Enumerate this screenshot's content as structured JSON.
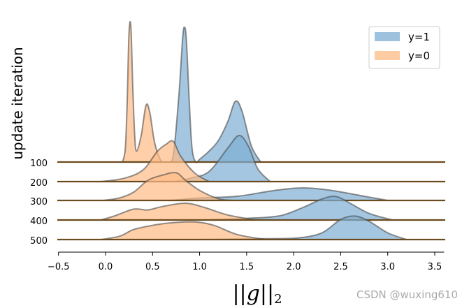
{
  "chart_data": {
    "type": "area",
    "title": "",
    "xlabel": "||g||2",
    "xlabel_parts": {
      "bars_left": "||",
      "var": "g",
      "bars_right": "||",
      "sub": "2"
    },
    "ylabel": "update iteration",
    "xlim": [
      -0.5,
      3.6
    ],
    "xticks": [
      -0.5,
      0.0,
      0.5,
      1.0,
      1.5,
      2.0,
      2.5,
      3.0,
      3.5
    ],
    "xtick_labels": [
      "−0.5",
      "0.0",
      "0.5",
      "1.0",
      "1.5",
      "2.0",
      "2.5",
      "3.0",
      "3.5"
    ],
    "categories": [
      "100",
      "200",
      "300",
      "400",
      "500"
    ],
    "legend": {
      "position": "top-right",
      "entries": [
        {
          "label": "y=1",
          "color": "#7eaed3"
        },
        {
          "label": "y=0",
          "color": "#fdbb84"
        }
      ]
    },
    "colors": {
      "y1": "#7eaed3",
      "y0": "#fdbb84",
      "baseline": "#6b4a1e"
    },
    "series": [
      {
        "iteration": "100",
        "y1": [
          [
            0.66,
            0
          ],
          [
            0.72,
            0.05
          ],
          [
            0.78,
            0.5
          ],
          [
            0.82,
            0.92
          ],
          [
            0.84,
            1.0
          ],
          [
            0.86,
            0.9
          ],
          [
            0.89,
            0.45
          ],
          [
            0.92,
            0.1
          ],
          [
            0.96,
            0
          ],
          [
            1.0,
            0.02
          ],
          [
            1.1,
            0.08
          ],
          [
            1.2,
            0.16
          ],
          [
            1.3,
            0.3
          ],
          [
            1.38,
            0.45
          ],
          [
            1.45,
            0.38
          ],
          [
            1.55,
            0.12
          ],
          [
            1.65,
            0
          ]
        ],
        "y0": [
          [
            0.18,
            0
          ],
          [
            0.21,
            0.1
          ],
          [
            0.23,
            0.45
          ],
          [
            0.25,
            0.96
          ],
          [
            0.27,
            1.0
          ],
          [
            0.29,
            0.55
          ],
          [
            0.31,
            0.2
          ],
          [
            0.33,
            0.08
          ],
          [
            0.38,
            0.2
          ],
          [
            0.43,
            0.42
          ],
          [
            0.47,
            0.37
          ],
          [
            0.52,
            0.15
          ],
          [
            0.58,
            0.02
          ],
          [
            0.62,
            0
          ]
        ]
      },
      {
        "iteration": "200",
        "y1": [
          [
            0.7,
            0
          ],
          [
            0.9,
            0.04
          ],
          [
            1.1,
            0.12
          ],
          [
            1.3,
            0.4
          ],
          [
            1.42,
            0.55
          ],
          [
            1.52,
            0.42
          ],
          [
            1.62,
            0.15
          ],
          [
            1.75,
            0
          ]
        ],
        "y0": [
          [
            -0.05,
            0
          ],
          [
            0.2,
            0.04
          ],
          [
            0.4,
            0.14
          ],
          [
            0.55,
            0.36
          ],
          [
            0.65,
            0.45
          ],
          [
            0.72,
            0.48
          ],
          [
            0.8,
            0.3
          ],
          [
            0.95,
            0.1
          ],
          [
            1.1,
            0
          ]
        ]
      },
      {
        "iteration": "300",
        "y1": [
          [
            0.7,
            0
          ],
          [
            1.0,
            0.03
          ],
          [
            1.4,
            0.05
          ],
          [
            1.8,
            0.12
          ],
          [
            2.1,
            0.15
          ],
          [
            2.4,
            0.12
          ],
          [
            2.75,
            0.05
          ],
          [
            3.0,
            0
          ]
        ],
        "y0": [
          [
            -0.02,
            0
          ],
          [
            0.15,
            0.03
          ],
          [
            0.3,
            0.1
          ],
          [
            0.45,
            0.24
          ],
          [
            0.6,
            0.3
          ],
          [
            0.75,
            0.33
          ],
          [
            0.85,
            0.24
          ],
          [
            1.0,
            0.12
          ],
          [
            1.2,
            0.02
          ],
          [
            1.35,
            0
          ]
        ]
      },
      {
        "iteration": "400",
        "y1": [
          [
            1.0,
            0
          ],
          [
            1.5,
            0.02
          ],
          [
            1.85,
            0.05
          ],
          [
            2.1,
            0.15
          ],
          [
            2.3,
            0.25
          ],
          [
            2.45,
            0.28
          ],
          [
            2.6,
            0.2
          ],
          [
            2.8,
            0.08
          ],
          [
            3.05,
            0
          ]
        ],
        "y0": [
          [
            -0.05,
            0
          ],
          [
            0.1,
            0.05
          ],
          [
            0.3,
            0.13
          ],
          [
            0.45,
            0.12
          ],
          [
            0.6,
            0.16
          ],
          [
            0.85,
            0.2
          ],
          [
            1.05,
            0.15
          ],
          [
            1.3,
            0.06
          ],
          [
            1.6,
            0
          ]
        ]
      },
      {
        "iteration": "500",
        "y1": [
          [
            1.0,
            0
          ],
          [
            1.7,
            0.01
          ],
          [
            2.05,
            0.02
          ],
          [
            2.3,
            0.08
          ],
          [
            2.5,
            0.24
          ],
          [
            2.65,
            0.28
          ],
          [
            2.8,
            0.22
          ],
          [
            3.0,
            0.08
          ],
          [
            3.2,
            0
          ]
        ],
        "y0": [
          [
            -0.05,
            0
          ],
          [
            0.15,
            0.04
          ],
          [
            0.3,
            0.12
          ],
          [
            0.5,
            0.17
          ],
          [
            0.7,
            0.2
          ],
          [
            0.95,
            0.21
          ],
          [
            1.15,
            0.17
          ],
          [
            1.4,
            0.06
          ],
          [
            1.7,
            0
          ]
        ]
      }
    ]
  },
  "watermark": "CSDN @wuxing610"
}
